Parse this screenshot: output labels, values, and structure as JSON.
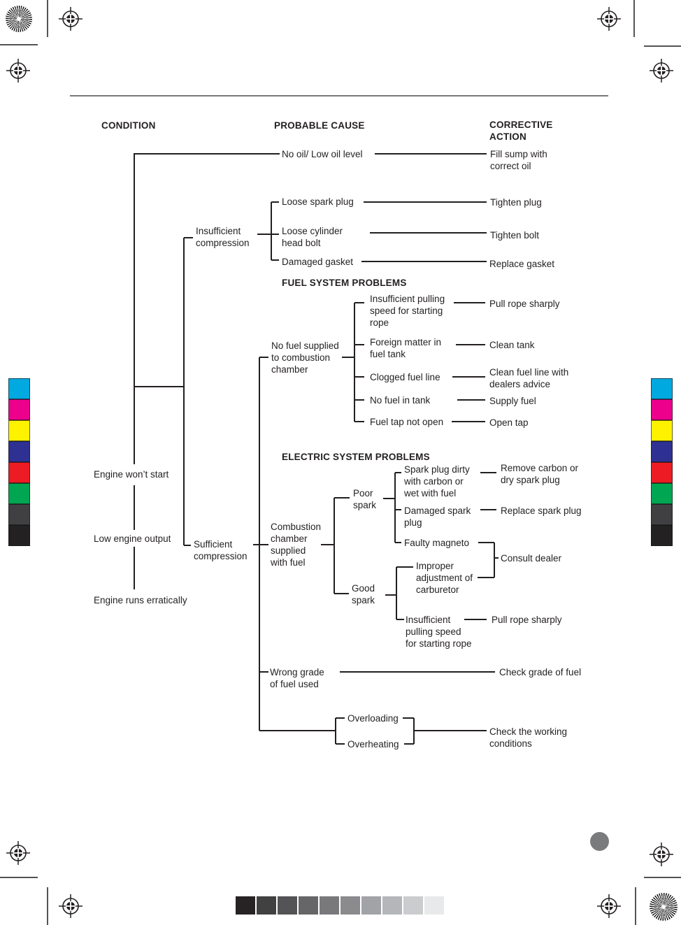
{
  "columns": {
    "condition": "CONDITION",
    "probable_cause": "PROBABLE CAUSE",
    "corrective_action": "CORRECTIVE\nACTION"
  },
  "conditions": {
    "engine_wont_start": "Engine won’t start",
    "low_engine_output": "Low engine output",
    "engine_runs_erratically": "Engine runs erratically"
  },
  "section_headings": {
    "fuel": "FUEL SYSTEM PROBLEMS",
    "electric": "ELECTRIC SYSTEM PROBLEMS"
  },
  "branches": {
    "insufficient_compression": "Insufficient\ncompression",
    "sufficient_compression": "Sufficient\ncompression",
    "no_fuel_supplied": "No fuel supplied\nto combustion\nchamber",
    "combustion_chamber": "Combustion\nchamber\nsupplied\nwith fuel",
    "poor_spark": "Poor\nspark",
    "good_spark": "Good\nspark",
    "wrong_grade": "Wrong grade\nof fuel used",
    "overloading": "Overloading",
    "overheating": "Overheating"
  },
  "causes": {
    "no_oil": "No oil/ Low oil level",
    "loose_spark_plug": "Loose spark plug",
    "loose_cylinder_head_bolt": "Loose cylinder\nhead bolt",
    "damaged_gasket": "Damaged gasket",
    "insufficient_pulling_fuel": "Insufficient pulling\nspeed for starting\nrope",
    "foreign_matter": "Foreign matter in\nfuel tank",
    "clogged_fuel_line": "Clogged fuel line",
    "no_fuel_in_tank": "No fuel in tank",
    "fuel_tap_not_open": "Fuel tap not open",
    "spark_plug_dirty": "Spark plug dirty\nwith carbon or\nwet with fuel",
    "damaged_spark_plug": "Damaged spark\nplug",
    "faulty_magneto": "Faulty magneto",
    "improper_adjustment": "Improper\nadjustment of\ncarburetor",
    "insufficient_pulling_electric": "Insufficient\npulling speed\nfor starting rope"
  },
  "actions": {
    "fill_sump": "Fill sump with\ncorrect oil",
    "tighten_plug": "Tighten plug",
    "tighten_bolt": "Tighten bolt",
    "replace_gasket": "Replace gasket",
    "pull_rope_sharply_fuel": "Pull rope sharply",
    "clean_tank": "Clean tank",
    "clean_fuel_line": "Clean fuel line with\ndealers advice",
    "supply_fuel": "Supply fuel",
    "open_tap": "Open tap",
    "remove_carbon": "Remove carbon or\ndry spark plug",
    "replace_spark_plug": "Replace spark plug",
    "consult_dealer": "Consult dealer",
    "pull_rope_sharply_electric": "Pull rope sharply",
    "check_grade_of_fuel": "Check grade of fuel",
    "check_working_conditions": "Check the working\nconditions"
  },
  "print_marks": {
    "line_color": "#231f20",
    "rule_color": "#77787b",
    "color_bar": [
      "#00a9e0",
      "#ec008c",
      "#fff200",
      "#2e3192",
      "#ed1c24",
      "#00a651",
      "#404042",
      "#242122"
    ],
    "grayscale_bar": [
      "#272325",
      "#414142",
      "#545456",
      "#666568",
      "#79797c",
      "#8b8b8e",
      "#a2a3a6",
      "#b5b6b9",
      "#cbccce",
      "#e8e9ea"
    ]
  }
}
